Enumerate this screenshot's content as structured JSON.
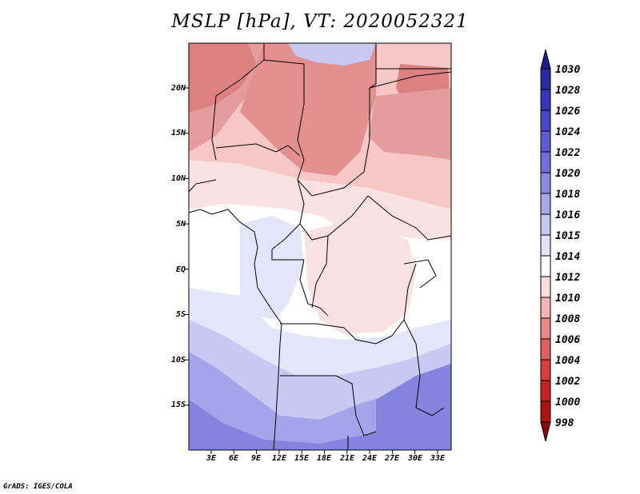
{
  "title": "MSLP [hPa], VT: 2020052321",
  "credit": "GrADS: IGES/COLA",
  "map": {
    "lat_ticks": [
      "20N",
      "15N",
      "10N",
      "5N",
      "EQ",
      "5S",
      "10S",
      "15S"
    ],
    "lon_ticks": [
      "3E",
      "6E",
      "9E",
      "12E",
      "15E",
      "18E",
      "21E",
      "24E",
      "27E",
      "30E",
      "33E"
    ]
  },
  "colorbar": {
    "levels": [
      "1030",
      "1028",
      "1026",
      "1024",
      "1022",
      "1020",
      "1018",
      "1016",
      "1015",
      "1014",
      "1012",
      "1010",
      "1008",
      "1006",
      "1004",
      "1002",
      "1000",
      "998"
    ],
    "colors": [
      "#1c1c8c",
      "#2a2aa4",
      "#3636b8",
      "#4848c8",
      "#5c5cd4",
      "#7070dc",
      "#8a8ae2",
      "#a8a8ea",
      "#c6c6f2",
      "#e2e2f8",
      "#ffffff",
      "#fbdcdc",
      "#f4b4b4",
      "#e88888",
      "#e06060",
      "#da3c3c",
      "#cc2020",
      "#b01212",
      "#8a0808"
    ]
  },
  "region_colors": {
    "sahel_low": "#e49090",
    "north_core": "#dc8080",
    "west_low": "#e49c9c",
    "mid_band": "#f7c6c6",
    "light_pink": "#fbe2e2",
    "neutral": "#ffffff",
    "lav_light": "#e4e4fa",
    "lav_mid": "#c8c8f2",
    "lav_deep": "#a4a4ea",
    "lav_strong": "#8484de"
  }
}
